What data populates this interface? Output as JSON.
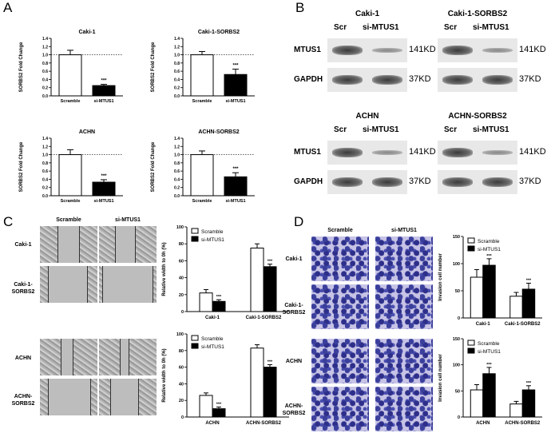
{
  "panels": {
    "A": "A",
    "B": "B",
    "C": "C",
    "D": "D"
  },
  "panelA": {
    "charts": [
      {
        "title": "Caki-1",
        "ylabel": "SORBS2 Fold Change",
        "categories": [
          "Scramble",
          "si-MTUS1"
        ],
        "values": [
          1.0,
          0.25
        ],
        "errors": [
          0.11,
          0.03
        ],
        "sig": "***",
        "ylim": [
          0,
          1.4
        ],
        "ticks": [
          "0.0",
          "0.2",
          "0.4",
          "0.6",
          "0.8",
          "1.0",
          "1.2",
          "1.4"
        ]
      },
      {
        "title": "Caki-1-SORBS2",
        "ylabel": "SORBS2 Fold Change",
        "categories": [
          "Scramble",
          "si-MTUS1"
        ],
        "values": [
          1.0,
          0.52
        ],
        "errors": [
          0.08,
          0.13
        ],
        "sig": "***",
        "ylim": [
          0,
          1.4
        ],
        "ticks": [
          "0.0",
          "0.2",
          "0.4",
          "0.6",
          "0.8",
          "1.0",
          "1.2",
          "1.4"
        ]
      },
      {
        "title": "ACHN",
        "ylabel": "SORBS2 Fold Change",
        "categories": [
          "Scramble",
          "si-MTUS1"
        ],
        "values": [
          1.0,
          0.33
        ],
        "errors": [
          0.12,
          0.06
        ],
        "sig": "***",
        "ylim": [
          0,
          1.4
        ],
        "ticks": [
          "0.0",
          "0.2",
          "0.4",
          "0.6",
          "0.8",
          "1.0",
          "1.2",
          "1.4"
        ]
      },
      {
        "title": "ACHN-SORBS2",
        "ylabel": "SORBS2 Fold Change",
        "categories": [
          "Scramble",
          "si-MTUS1"
        ],
        "values": [
          1.0,
          0.46
        ],
        "errors": [
          0.09,
          0.1
        ],
        "sig": "***",
        "ylim": [
          0,
          1.4
        ],
        "ticks": [
          "0.0",
          "0.2",
          "0.4",
          "0.6",
          "0.8",
          "1.0",
          "1.2",
          "1.4"
        ]
      }
    ]
  },
  "panelB": {
    "blocks": [
      {
        "title": "Caki-1",
        "lanes": [
          "Scr",
          "si-MTUS1"
        ],
        "rows": [
          {
            "label": "MTUS1",
            "size": "141KD"
          },
          {
            "label": "GAPDH",
            "size": "37KD"
          }
        ]
      },
      {
        "title": "Caki-1-SORBS2",
        "lanes": [
          "Scr",
          "si-MTUS1"
        ],
        "rows": [
          {
            "label": "",
            "size": "141KD"
          },
          {
            "label": "",
            "size": "37KD"
          }
        ]
      },
      {
        "title": "ACHN",
        "lanes": [
          "Scr",
          "si-MTUS1"
        ],
        "rows": [
          {
            "label": "MTUS1",
            "size": "141KD"
          },
          {
            "label": "GAPDH",
            "size": "37KD"
          }
        ]
      },
      {
        "title": "ACHN-SORBS2",
        "lanes": [
          "Scr",
          "si-MTUS1"
        ],
        "rows": [
          {
            "label": "",
            "size": "141KD"
          },
          {
            "label": "",
            "size": "37KD"
          }
        ]
      }
    ]
  },
  "panelC": {
    "col_headers": [
      "Scramble",
      "si-MTUS1"
    ],
    "row_labels_top": [
      "Caki-1",
      "Caki-1-\nSORBS2"
    ],
    "row_labels_bottom": [
      "ACHN",
      "ACHN-\nSORBS2"
    ],
    "charts": [
      {
        "ylabel": "Relative width to 0h (%)",
        "legend": [
          "Scramble",
          "si-MTUS1"
        ],
        "categories": [
          "Caki-1",
          "Caki-1-SORBS2"
        ],
        "series": [
          {
            "name": "Scramble",
            "values": [
              22,
              75
            ],
            "errors": [
              4,
              5
            ]
          },
          {
            "name": "si-MTUS1",
            "values": [
              12,
              53
            ],
            "errors": [
              2,
              3
            ]
          }
        ],
        "sig": "***",
        "ylim": [
          0,
          100
        ],
        "ticks": [
          "0",
          "20",
          "40",
          "60",
          "80",
          "100"
        ]
      },
      {
        "ylabel": "Relative width to 0h (%)",
        "legend": [
          "Scramble",
          "si-MTUS1"
        ],
        "categories": [
          "ACHN",
          "ACHN-SORBS2"
        ],
        "series": [
          {
            "name": "Scramble",
            "values": [
              26,
              83
            ],
            "errors": [
              3,
              4
            ]
          },
          {
            "name": "si-MTUS1",
            "values": [
              10,
              60
            ],
            "errors": [
              2,
              3
            ]
          }
        ],
        "sig": "***",
        "ylim": [
          0,
          100
        ],
        "ticks": [
          "0",
          "20",
          "40",
          "60",
          "80",
          "100"
        ]
      }
    ]
  },
  "panelD": {
    "col_headers": [
      "Scramble",
      "si-MTUS1"
    ],
    "row_labels_top": [
      "Caki-1",
      "Caki-1-\nSORBS2"
    ],
    "row_labels_bottom": [
      "ACHN",
      "ACHN-\nSORBS2"
    ],
    "charts": [
      {
        "ylabel": "Invasion cell number",
        "legend": [
          "Scramble",
          "si-MTUS1"
        ],
        "categories": [
          "Caki-1",
          "Caki-1-SORBS2"
        ],
        "series": [
          {
            "name": "Scramble",
            "values": [
              75,
              40
            ],
            "errors": [
              14,
              7
            ]
          },
          {
            "name": "si-MTUS1",
            "values": [
              97,
              53
            ],
            "errors": [
              12,
              11
            ]
          }
        ],
        "sig": "***",
        "ylim": [
          0,
          150
        ],
        "ticks": [
          "0",
          "50",
          "100",
          "150"
        ]
      },
      {
        "ylabel": "Invasion cell number",
        "legend": [
          "Scramble",
          "si-MTUS1"
        ],
        "categories": [
          "ACHN",
          "ACHN-SORBS2"
        ],
        "series": [
          {
            "name": "Scramble",
            "values": [
              52,
              25
            ],
            "errors": [
              10,
              5
            ]
          },
          {
            "name": "si-MTUS1",
            "values": [
              83,
              52
            ],
            "errors": [
              12,
              8
            ]
          }
        ],
        "sig": "***",
        "ylim": [
          0,
          150
        ],
        "ticks": [
          "0",
          "50",
          "100",
          "150"
        ]
      }
    ]
  }
}
